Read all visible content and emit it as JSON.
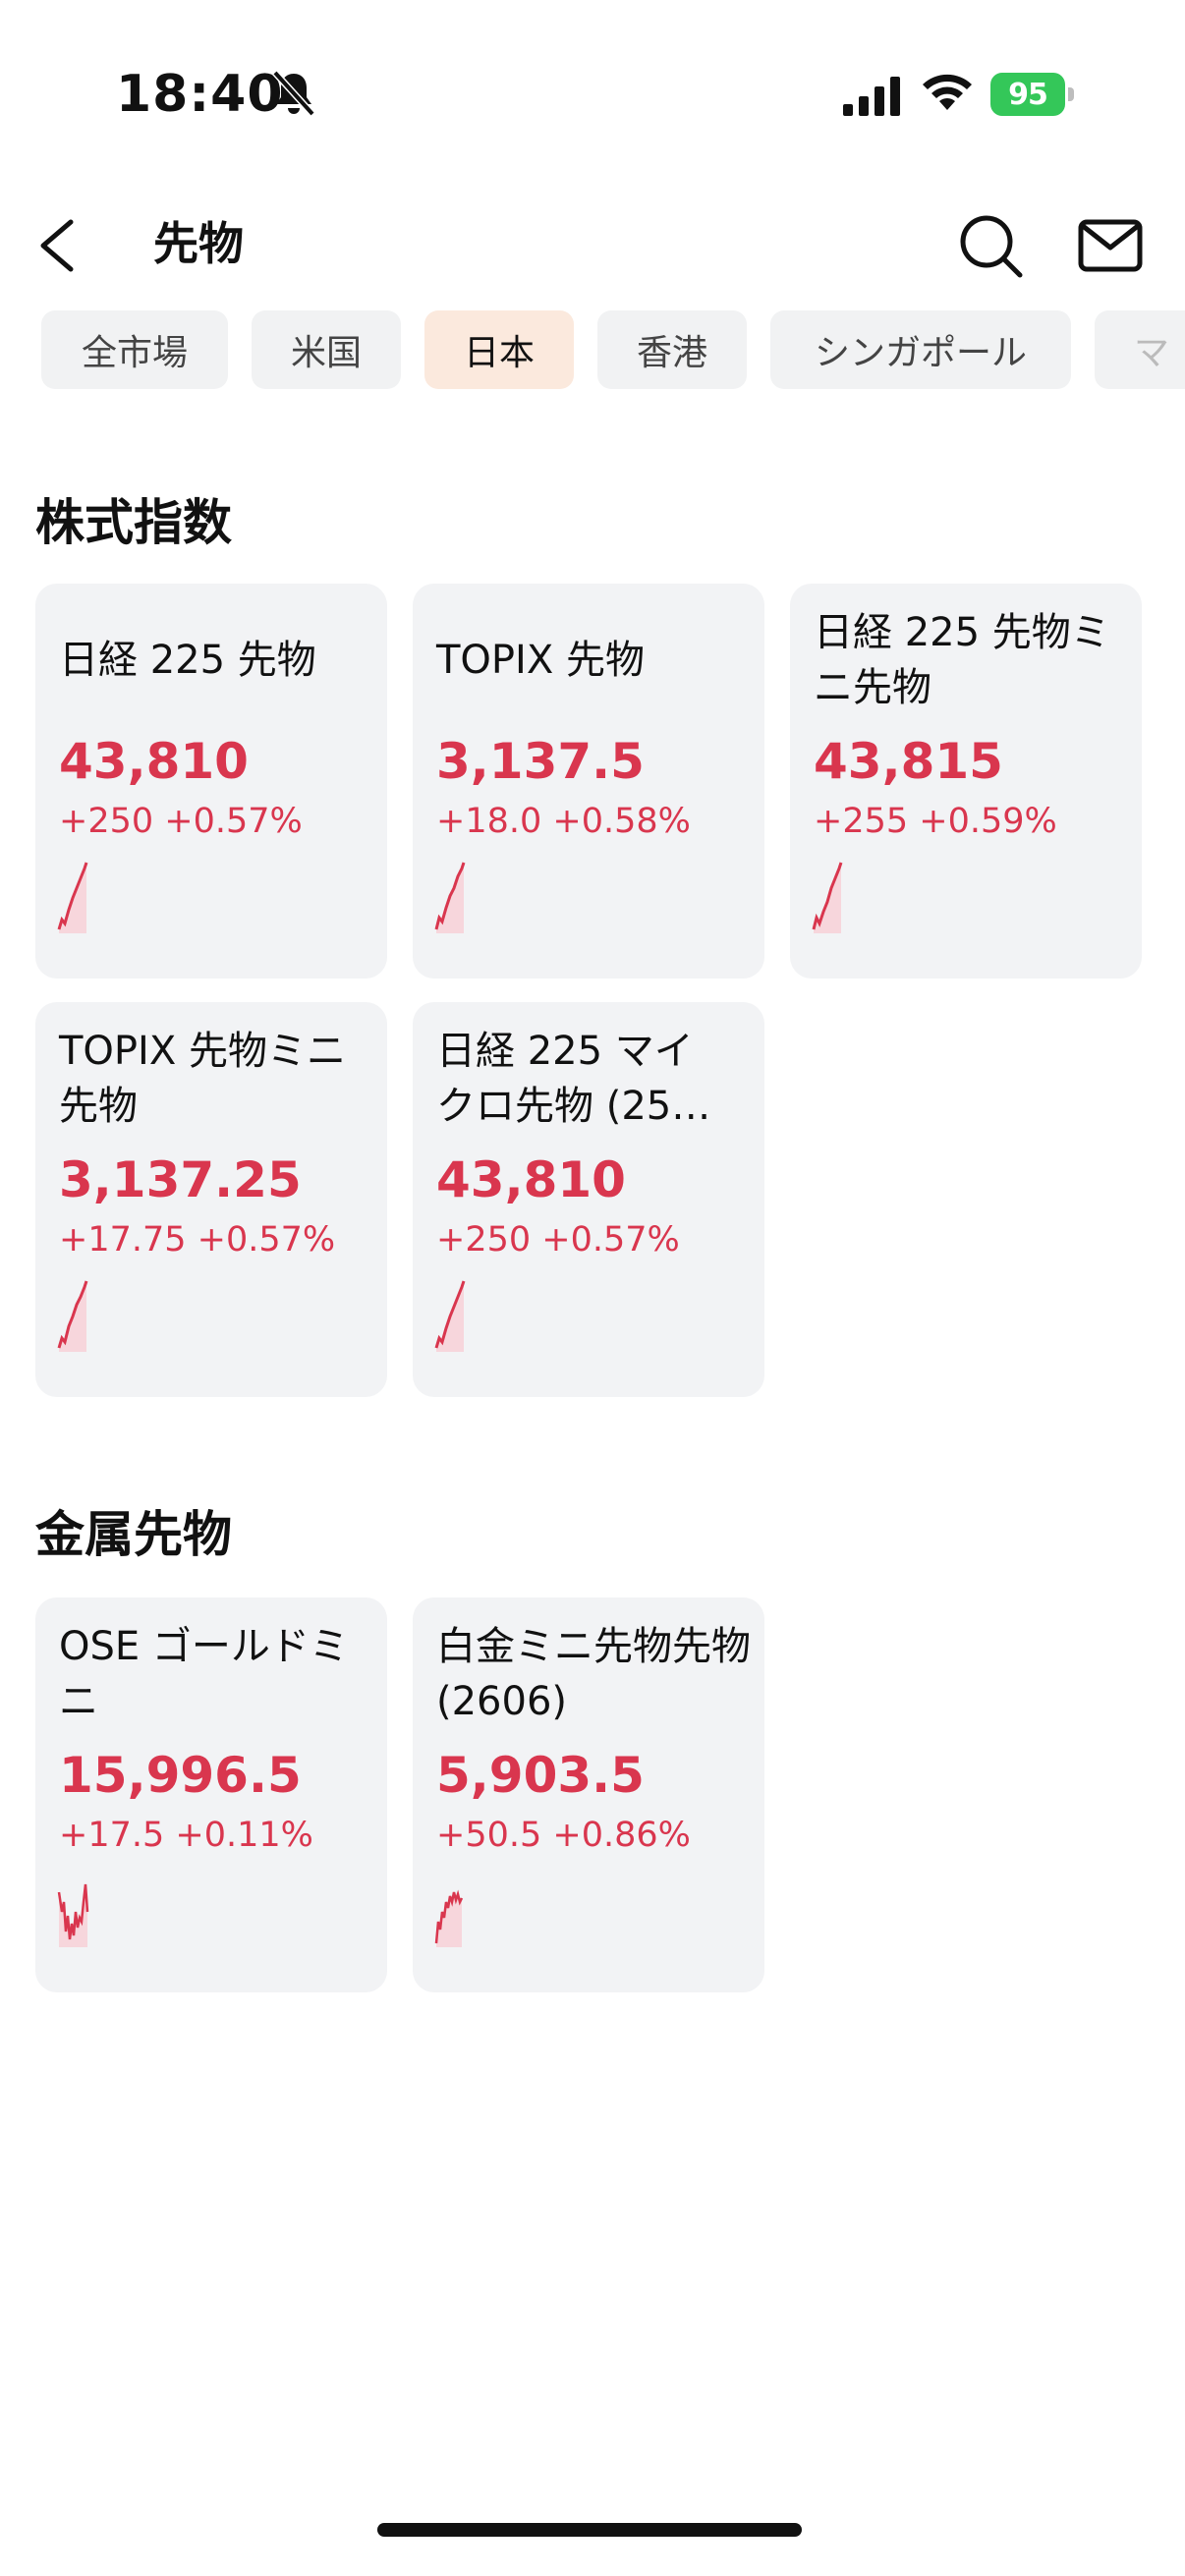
{
  "status_bar": {
    "time": "18:40",
    "battery_level": "95"
  },
  "nav": {
    "title": "先物"
  },
  "tabs": [
    {
      "label": "全市場",
      "active": false
    },
    {
      "label": "米国",
      "active": false
    },
    {
      "label": "日本",
      "active": true
    },
    {
      "label": "香港",
      "active": false
    },
    {
      "label": "シンガポール",
      "active": false
    },
    {
      "label": "マ",
      "active": false
    }
  ],
  "sections": [
    {
      "title": "株式指数",
      "cards": [
        {
          "name": "日経 225 先物",
          "price": "43,810",
          "change": "+250 +0.57%"
        },
        {
          "name": "TOPIX 先物",
          "price": "3,137.5",
          "change": "+18.0 +0.58%"
        },
        {
          "name": "日経 225 先物ミニ先物",
          "price": "43,815",
          "change": "+255 +0.59%"
        },
        {
          "name": "TOPIX 先物ミニ先物",
          "price": "3,137.25",
          "change": "+17.75 +0.57%"
        },
        {
          "name": "日経 225 マイクロ先物 (25…",
          "price": "43,810",
          "change": "+250 +0.57%"
        }
      ]
    },
    {
      "title": "金属先物",
      "cards": [
        {
          "name": "OSE ゴールドミニ",
          "price": "15,996.5",
          "change": "+17.5 +0.11%"
        },
        {
          "name": "白金ミニ先物先物 (2606)",
          "price": "5,903.5",
          "change": "+50.5 +0.86%"
        }
      ]
    }
  ],
  "colors": {
    "up": "#d9364e",
    "card_bg": "#f2f3f5",
    "active_tab_bg": "#fbe9dd",
    "battery": "#34c759"
  }
}
